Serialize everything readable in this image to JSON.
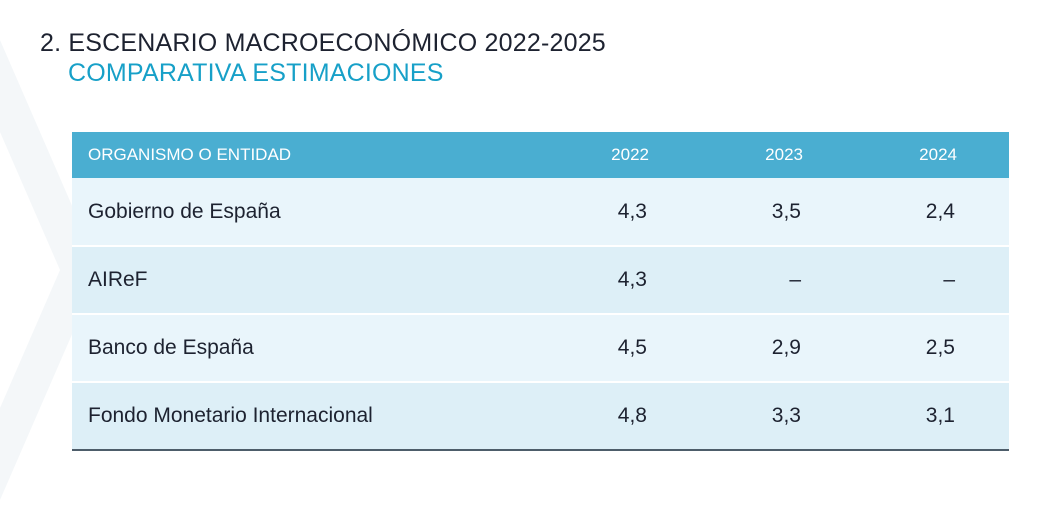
{
  "header": {
    "title": "2. ESCENARIO MACROECONÓMICO 2022-2025",
    "subtitle": "COMPARATIVA ESTIMACIONES"
  },
  "colors": {
    "header_bg": "#4aaed1",
    "subtitle": "#17a0c8",
    "row_light": "#e9f5fb",
    "row_dark": "#ddeff7"
  },
  "table": {
    "columns": [
      "ORGANISMO O ENTIDAD",
      "2022",
      "2023",
      "2024"
    ],
    "rows": [
      {
        "entity": "Gobierno de España",
        "v2022": "4,3",
        "v2023": "3,5",
        "v2024": "2,4"
      },
      {
        "entity": "AIReF",
        "v2022": "4,3",
        "v2023": "–",
        "v2024": "–"
      },
      {
        "entity": "Banco de España",
        "v2022": "4,5",
        "v2023": "2,9",
        "v2024": "2,5"
      },
      {
        "entity": "Fondo Monetario Internacional",
        "v2022": "4,8",
        "v2023": "3,3",
        "v2024": "3,1"
      }
    ]
  }
}
